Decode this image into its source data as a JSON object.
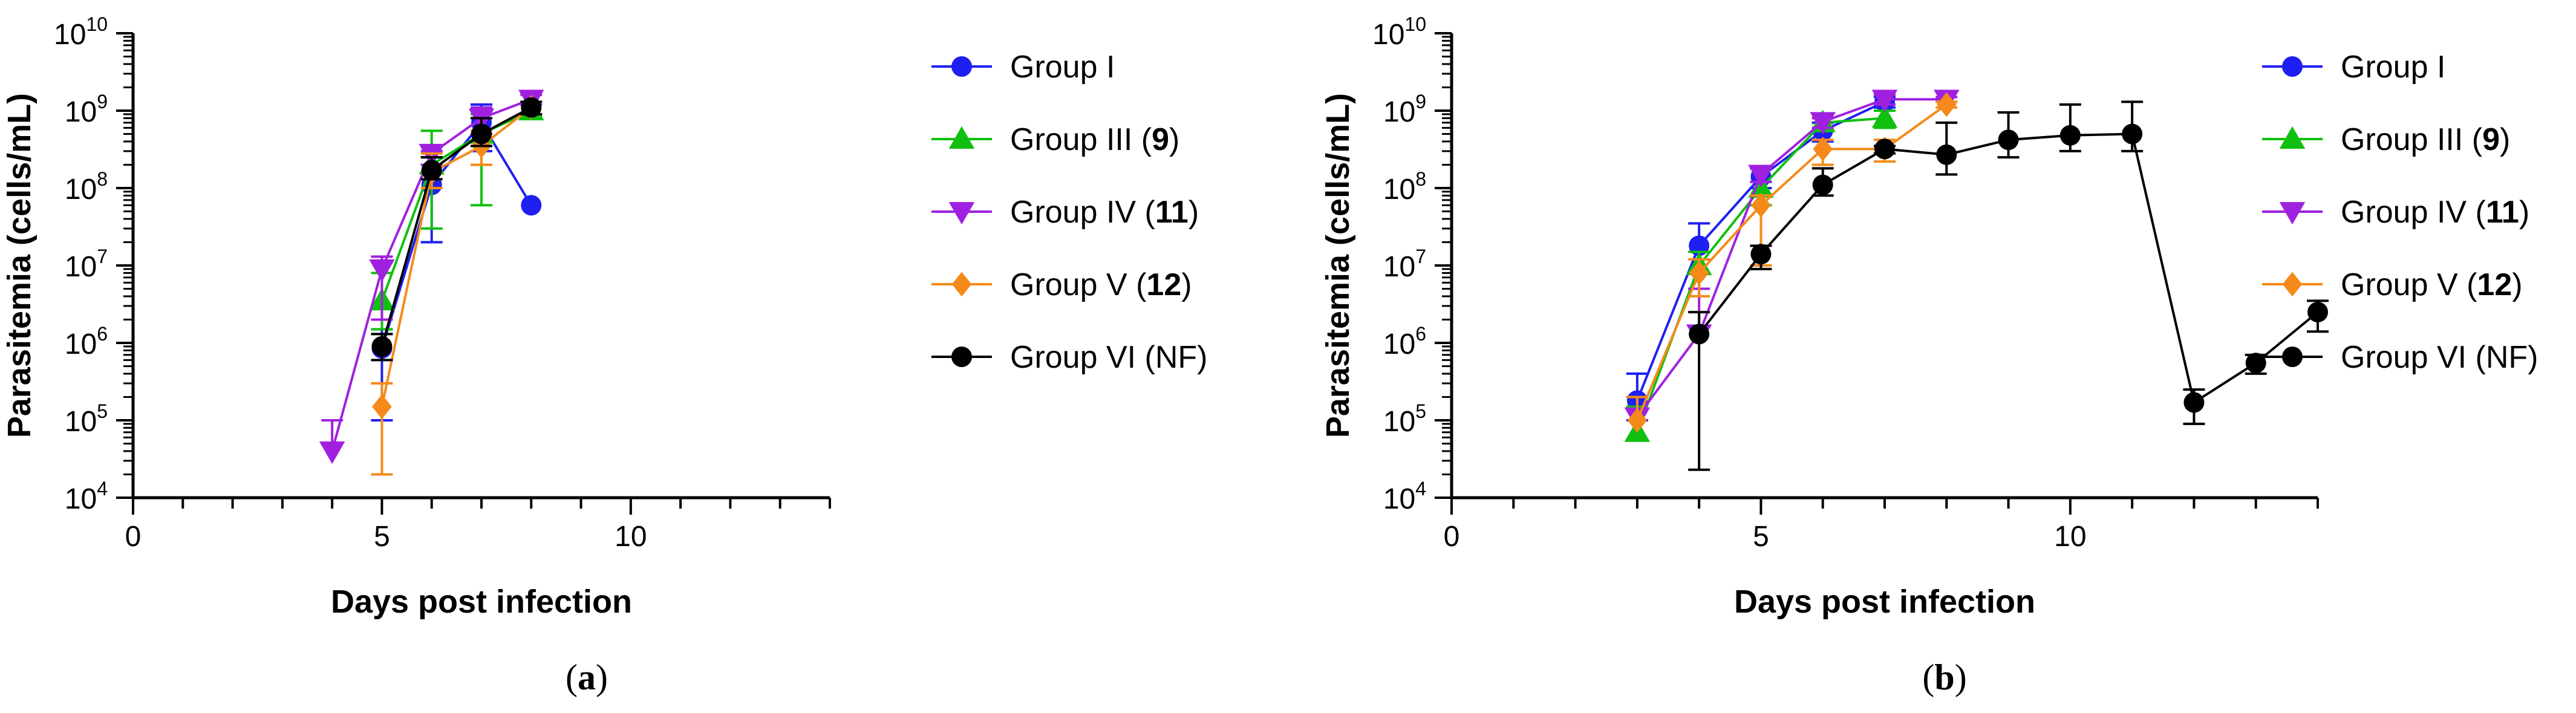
{
  "chart_data": [
    {
      "type": "line",
      "panel_label": "(a)",
      "xlabel": "Days post infection",
      "ylabel": "Parasitemia (cells/mL)",
      "xlim": [
        0,
        14
      ],
      "ylim_log10": [
        4,
        10
      ],
      "y_scale": "log",
      "x_ticks": [
        0,
        5,
        10
      ],
      "y_ticks": [
        {
          "base": "10",
          "exp": "4"
        },
        {
          "base": "10",
          "exp": "5"
        },
        {
          "base": "10",
          "exp": "6"
        },
        {
          "base": "10",
          "exp": "7"
        },
        {
          "base": "10",
          "exp": "8"
        },
        {
          "base": "10",
          "exp": "9"
        },
        {
          "base": "10",
          "exp": "10"
        }
      ],
      "legend_position": "right",
      "series": [
        {
          "name": "Group I",
          "label_plain": "Group I",
          "label_bold": "",
          "color": "#1f1ff2",
          "marker": "circle",
          "x": [
            5,
            6,
            7,
            8
          ],
          "y": [
            850000,
            110000000,
            700000000,
            60000000
          ],
          "err_up": [
            1500000,
            250000000,
            1200000000,
            null
          ],
          "err_low": [
            100000,
            20000000,
            300000000,
            null
          ]
        },
        {
          "name": "Group III (9)",
          "label_plain": "Group III (",
          "label_bold": "9",
          "color": "#10c010",
          "marker": "triangle-up",
          "x": [
            5,
            6,
            7,
            8
          ],
          "y": [
            3500000,
            200000000,
            500000000,
            1000000000
          ],
          "err_up": [
            8000000,
            550000000,
            900000000,
            1200000000
          ],
          "err_low": [
            1500000,
            30000000,
            60000000,
            850000000
          ]
        },
        {
          "name": "Group IV (11)",
          "label_plain": "Group IV (",
          "label_bold": "11",
          "color": "#a020e0",
          "marker": "triangle-down",
          "x": [
            4,
            5,
            6,
            7,
            8
          ],
          "y": [
            40000,
            9000000,
            280000000,
            800000000,
            1400000000
          ],
          "err_up": [
            100000,
            13000000,
            300000000,
            1100000000,
            1600000000
          ],
          "err_low": [
            null,
            2000000,
            200000000,
            500000000,
            1200000000
          ]
        },
        {
          "name": "Group V (12)",
          "label_plain": "Group V (",
          "label_bold": "12",
          "color": "#f58a1a",
          "marker": "diamond",
          "x": [
            5,
            6,
            7,
            8
          ],
          "y": [
            150000,
            160000000,
            350000000,
            1100000000
          ],
          "err_up": [
            300000,
            280000000,
            550000000,
            1300000000
          ],
          "err_low": [
            20000,
            100000000,
            200000000,
            900000000
          ]
        },
        {
          "name": "Group VI (NF)",
          "label_plain": "Group VI (NF)",
          "label_bold": "",
          "color": "#000000",
          "marker": "circle",
          "x": [
            5,
            6,
            7,
            8
          ],
          "y": [
            900000,
            170000000,
            500000000,
            1100000000
          ],
          "err_up": [
            1300000,
            250000000,
            800000000,
            1300000000
          ],
          "err_low": [
            600000,
            130000000,
            350000000,
            900000000
          ]
        }
      ]
    },
    {
      "type": "line",
      "panel_label": "(b)",
      "xlabel": "Days post infection",
      "ylabel": "Parasitemia (cells/mL)",
      "xlim": [
        0,
        14
      ],
      "ylim_log10": [
        4,
        10
      ],
      "y_scale": "log",
      "x_ticks": [
        0,
        5,
        10
      ],
      "y_ticks": [
        {
          "base": "10",
          "exp": "4"
        },
        {
          "base": "10",
          "exp": "5"
        },
        {
          "base": "10",
          "exp": "6"
        },
        {
          "base": "10",
          "exp": "7"
        },
        {
          "base": "10",
          "exp": "8"
        },
        {
          "base": "10",
          "exp": "9"
        },
        {
          "base": "10",
          "exp": "10"
        }
      ],
      "legend_position": "right",
      "series": [
        {
          "name": "Group I",
          "label_plain": "Group I",
          "label_bold": "",
          "color": "#1f1ff2",
          "marker": "circle",
          "x": [
            3,
            4,
            5,
            6,
            7
          ],
          "y": [
            180000,
            18000000,
            140000000,
            550000000,
            1300000000
          ],
          "err_up": [
            400000,
            35000000,
            180000000,
            700000000,
            1500000000
          ],
          "err_low": [
            100000,
            8000000,
            100000000,
            400000000,
            1100000000
          ]
        },
        {
          "name": "Group III (9)",
          "label_plain": "Group III (",
          "label_bold": "9",
          "color": "#10c010",
          "marker": "triangle-up",
          "x": [
            3,
            4,
            5,
            6,
            7
          ],
          "y": [
            70000,
            10000000,
            100000000,
            700000000,
            800000000
          ],
          "err_up": [
            150000,
            15000000,
            120000000,
            800000000,
            1000000000
          ],
          "err_low": [
            null,
            5000000,
            60000000,
            550000000,
            600000000
          ]
        },
        {
          "name": "Group IV (11)",
          "label_plain": "Group IV (",
          "label_bold": "11",
          "color": "#a020e0",
          "marker": "triangle-down",
          "x": [
            3,
            4,
            5,
            6,
            7,
            8
          ],
          "y": [
            110000,
            1300000,
            150000000,
            720000000,
            1400000000,
            1400000000
          ],
          "err_up": [
            200000,
            5000000,
            180000000,
            800000000,
            1600000000,
            1500000000
          ],
          "err_low": [
            null,
            null,
            120000000,
            600000000,
            1200000000,
            1300000000
          ]
        },
        {
          "name": "Group V (12)",
          "label_plain": "Group V (",
          "label_bold": "12",
          "color": "#f58a1a",
          "marker": "diamond",
          "x": [
            3,
            4,
            5,
            6,
            7,
            8
          ],
          "y": [
            100000,
            8000000,
            60000000,
            320000000,
            320000000,
            1200000000
          ],
          "err_up": [
            200000,
            12000000,
            80000000,
            420000000,
            420000000,
            1300000000
          ],
          "err_low": [
            null,
            4000000,
            10000000,
            200000000,
            220000000,
            1100000000
          ]
        },
        {
          "name": "Group VI (NF)",
          "label_plain": "Group VI (NF)",
          "label_bold": "",
          "color": "#000000",
          "marker": "circle",
          "x": [
            4,
            5,
            6,
            7,
            8,
            9,
            10,
            11,
            12,
            13,
            14
          ],
          "y": [
            1300000,
            14000000,
            110000000,
            320000000,
            270000000,
            420000000,
            480000000,
            500000000,
            170000,
            550000,
            2500000
          ],
          "err_up": [
            2500000,
            18000000,
            180000000,
            350000000,
            700000000,
            950000000,
            1200000000,
            1300000000,
            250000,
            700000,
            3500000
          ],
          "err_low": [
            23000,
            9000000,
            80000000,
            280000000,
            150000000,
            250000000,
            300000000,
            300000000,
            90000,
            400000,
            1400000
          ]
        }
      ]
    }
  ]
}
